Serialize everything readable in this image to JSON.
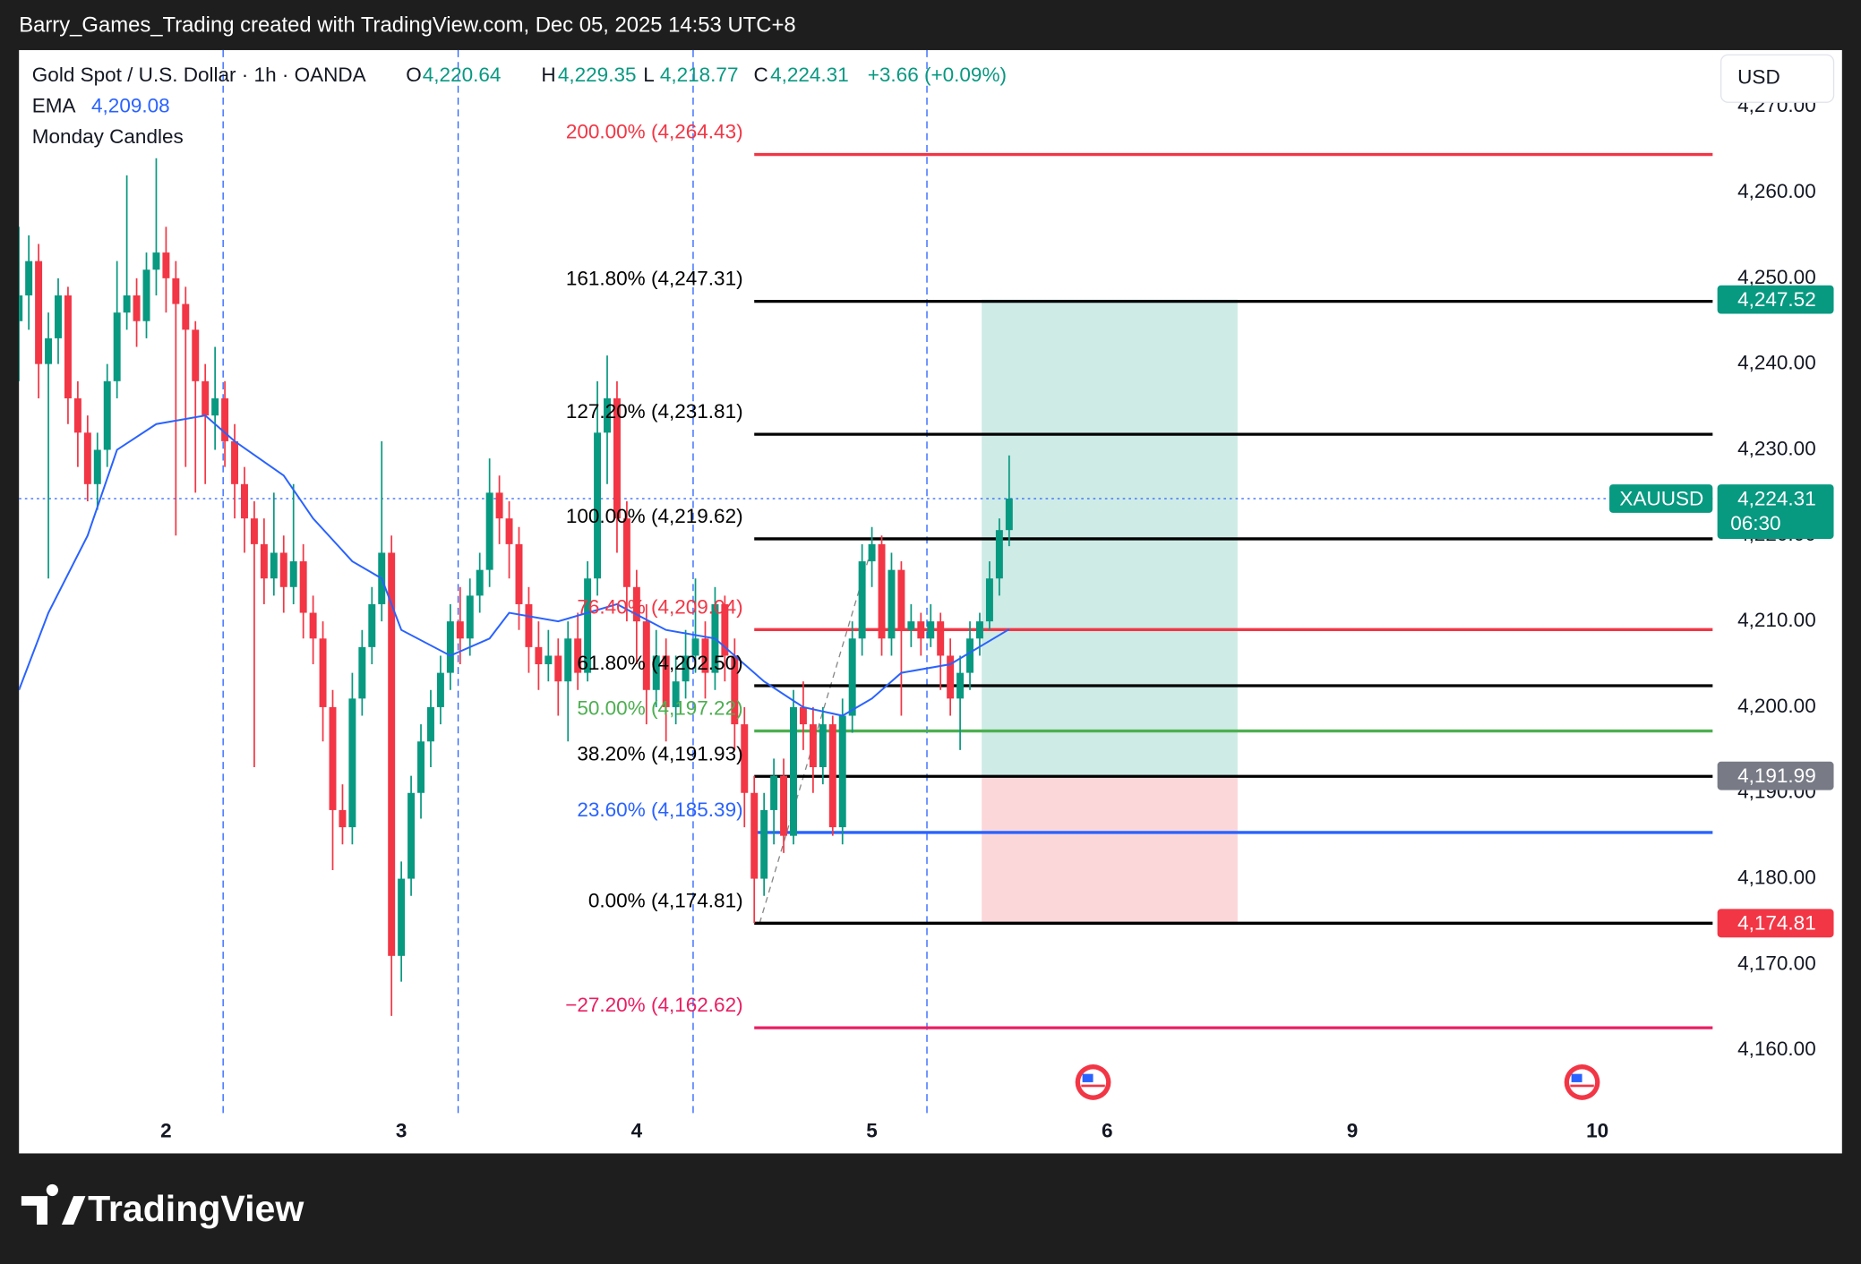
{
  "header": "Barry_Games_Trading created with TradingView.com, Dec 05, 2025 14:53 UTC+8",
  "footer_logo": "TradingView",
  "chart_data": {
    "type": "candlestick",
    "title": "Gold Spot / U.S. Dollar · 1h · OANDA",
    "legend_ohlc": [
      {
        "label": "O",
        "text": "4,220.64"
      },
      {
        "label": "H",
        "text": "4,229.35"
      },
      {
        "label": "L",
        "text": "4,218.77"
      },
      {
        "label": "C",
        "text": "4,224.31"
      }
    ],
    "change": "+3.66 (+0.09%)",
    "currency": "USD",
    "up_color": "#089981",
    "down_color": "#f23645",
    "grid": true,
    "xlim": [
      -15,
      158
    ],
    "xticks": [
      {
        "value": 0,
        "label": "2"
      },
      {
        "value": 24,
        "label": "3"
      },
      {
        "value": 48,
        "label": "4"
      },
      {
        "value": 72,
        "label": "5"
      },
      {
        "value": 96,
        "label": "6"
      },
      {
        "value": 121,
        "label": "9"
      },
      {
        "value": 146,
        "label": "10"
      }
    ],
    "ylim": [
      4152.4,
      4276.6
    ],
    "yticks": [
      {
        "value": 4160,
        "label": "4,160.00"
      },
      {
        "value": 4170,
        "label": "4,170.00"
      },
      {
        "value": 4180,
        "label": "4,180.00"
      },
      {
        "value": 4190,
        "label": "4,190.00"
      },
      {
        "value": 4200,
        "label": "4,200.00"
      },
      {
        "value": 4210,
        "label": "4,210.00"
      },
      {
        "value": 4220,
        "label": "4,220.00"
      },
      {
        "value": 4230,
        "label": "4,230.00"
      },
      {
        "value": 4240,
        "label": "4,240.00"
      },
      {
        "value": 4250,
        "label": "4,250.00"
      },
      {
        "value": 4260,
        "label": "4,260.00"
      },
      {
        "value": 4270,
        "label": "4,270.00"
      }
    ],
    "x": [
      -15,
      -14,
      -13,
      -12,
      -11,
      -10,
      -9,
      -8,
      -7,
      -6,
      -5,
      -4,
      -3,
      -2,
      -1,
      0,
      1,
      2,
      3,
      4,
      5,
      6,
      7,
      8,
      9,
      10,
      11,
      12,
      13,
      14,
      15,
      16,
      17,
      18,
      19,
      20,
      21,
      22,
      23,
      24,
      25,
      26,
      27,
      28,
      29,
      30,
      31,
      32,
      33,
      34,
      35,
      36,
      37,
      38,
      39,
      40,
      41,
      42,
      43,
      44,
      45,
      46,
      47,
      48,
      49,
      50,
      51,
      52,
      53,
      54,
      55,
      56,
      57,
      58,
      59,
      60,
      61,
      62,
      63,
      64,
      65,
      66,
      67,
      68,
      69,
      70,
      71,
      72,
      73,
      74,
      75,
      76,
      77,
      78,
      79,
      80,
      81,
      82,
      83,
      84,
      85,
      86
    ],
    "open": [
      4245,
      4248,
      4252,
      4240,
      4243,
      4248,
      4236,
      4232,
      4226,
      4230,
      4238,
      4246,
      4248,
      4245,
      4251,
      4253,
      4250,
      4247,
      4244,
      4238,
      4234,
      4236,
      4231,
      4226,
      4222,
      4219,
      4215,
      4218,
      4214,
      4217,
      4211,
      4208,
      4200,
      4188,
      4186,
      4201,
      4207,
      4212,
      4218,
      4171,
      4180,
      4190,
      4196,
      4200,
      4204,
      4210,
      4208,
      4213,
      4216,
      4225,
      4222,
      4219,
      4212,
      4207,
      4205,
      4206,
      4203,
      4208,
      4204,
      4215,
      4232,
      4236,
      4222,
      4214,
      4210,
      4202,
      4206,
      4200,
      4203,
      4206,
      4208,
      4204,
      4212,
      4206,
      4198,
      4190,
      4180,
      4188,
      4192,
      4185,
      4200,
      4198,
      4193,
      4198,
      4186,
      4199,
      4208,
      4217,
      4219,
      4208,
      4216,
      4209,
      4210,
      4208,
      4210,
      4206,
      4201,
      4204,
      4208,
      4210,
      4215,
      4220.64
    ],
    "high": [
      4256,
      4255,
      4254,
      4246,
      4250,
      4249,
      4238,
      4234,
      4232,
      4240,
      4252,
      4262,
      4250,
      4253,
      4264,
      4256,
      4252,
      4249,
      4245,
      4240,
      4242,
      4238,
      4233,
      4228,
      4224,
      4222,
      4225,
      4220,
      4226,
      4219,
      4213,
      4210,
      4202,
      4191,
      4204,
      4209,
      4214,
      4231,
      4220,
      4182,
      4192,
      4198,
      4202,
      4206,
      4212,
      4214,
      4215,
      4218,
      4229,
      4227,
      4224,
      4221,
      4214,
      4210,
      4209,
      4208,
      4210,
      4211,
      4217,
      4238,
      4241,
      4238,
      4224,
      4216,
      4212,
      4209,
      4208,
      4206,
      4209,
      4215,
      4210,
      4214,
      4213,
      4208,
      4200,
      4192,
      4190,
      4194,
      4194,
      4202,
      4203,
      4200,
      4200,
      4199,
      4201,
      4210,
      4219,
      4221,
      4220,
      4218,
      4217,
      4212,
      4211,
      4212,
      4211,
      4208,
      4206,
      4210,
      4211,
      4217,
      4222,
      4229.35
    ],
    "low": [
      4238,
      4244,
      4236,
      4215,
      4240,
      4233,
      4228,
      4224,
      4223,
      4228,
      4236,
      4244,
      4242,
      4243,
      4248,
      4246,
      4220,
      4228,
      4225,
      4226,
      4230,
      4228,
      4222,
      4218,
      4193,
      4212,
      4213,
      4211,
      4212,
      4208,
      4205,
      4196,
      4181,
      4184,
      4184,
      4199,
      4205,
      4210,
      4164,
      4168,
      4178,
      4187,
      4193,
      4198,
      4202,
      4205,
      4206,
      4211,
      4214,
      4219,
      4215,
      4209,
      4204,
      4202,
      4203,
      4199,
      4196,
      4202,
      4203,
      4213,
      4226,
      4218,
      4210,
      4205,
      4198,
      4200,
      4196,
      4198,
      4201,
      4204,
      4201,
      4202,
      4203,
      4195,
      4186,
      4174.81,
      4178,
      4184,
      4183,
      4184,
      4195,
      4190,
      4191,
      4185,
      4184,
      4197,
      4206,
      4214,
      4206,
      4206,
      4199,
      4207,
      4206,
      4207,
      4202,
      4199,
      4195,
      4202,
      4206,
      4209,
      4213,
      4218.77
    ],
    "close": [
      4248,
      4252,
      4240,
      4243,
      4248,
      4236,
      4232,
      4226,
      4230,
      4238,
      4246,
      4248,
      4245,
      4251,
      4253,
      4250,
      4247,
      4244,
      4238,
      4234,
      4236,
      4231,
      4226,
      4222,
      4219,
      4215,
      4218,
      4214,
      4217,
      4211,
      4208,
      4200,
      4188,
      4186,
      4201,
      4207,
      4212,
      4218,
      4171,
      4180,
      4190,
      4196,
      4200,
      4204,
      4210,
      4208,
      4213,
      4216,
      4225,
      4222,
      4219,
      4212,
      4207,
      4205,
      4206,
      4203,
      4208,
      4204,
      4215,
      4232,
      4236,
      4222,
      4214,
      4210,
      4202,
      4206,
      4200,
      4203,
      4206,
      4208,
      4204,
      4212,
      4206,
      4198,
      4190,
      4180,
      4188,
      4192,
      4185,
      4200,
      4198,
      4193,
      4198,
      4186,
      4199,
      4208,
      4217,
      4219,
      4208,
      4216,
      4209,
      4210,
      4208,
      4210,
      4206,
      4201,
      4204,
      4208,
      4210,
      4215,
      4220.64,
      4224.31
    ],
    "indicators": [
      {
        "name": "EMA",
        "value_label": "4,209.08",
        "color": "#2962ff",
        "x": [
          -15,
          -12,
          -8,
          -5,
          -1,
          4,
          7,
          12,
          15,
          19,
          22,
          24,
          29,
          33,
          35,
          40,
          46,
          51,
          56,
          61,
          65,
          69,
          72,
          75,
          80,
          86
        ],
        "values": [
          4202,
          4211,
          4220,
          4230,
          4233,
          4234,
          4231,
          4227,
          4222,
          4217,
          4215,
          4209,
          4206,
          4208,
          4211,
          4210,
          4212,
          4209,
          4208,
          4203,
          4200,
          4199,
          4201,
          4204,
          4205,
          4209.08
        ]
      },
      {
        "name": "Monday Candles"
      }
    ],
    "fib": {
      "x_start": 60,
      "levels": [
        {
          "label": "200.00% (4,264.43)",
          "value": 4264.43,
          "color": "#f23645"
        },
        {
          "label": "161.80% (4,247.31)",
          "value": 4247.31,
          "color": "#000000"
        },
        {
          "label": "127.20% (4,231.81)",
          "value": 4231.81,
          "color": "#000000"
        },
        {
          "label": "100.00% (4,219.62)",
          "value": 4219.62,
          "color": "#000000"
        },
        {
          "label": "76.40% (4,209.04)",
          "value": 4209.04,
          "color": "#f23645"
        },
        {
          "label": "61.80% (4,202.50)",
          "value": 4202.5,
          "color": "#000000"
        },
        {
          "label": "50.00% (4,197.22)",
          "value": 4197.22,
          "color": "#4caf50"
        },
        {
          "label": "38.20% (4,191.93)",
          "value": 4191.93,
          "color": "#000000"
        },
        {
          "label": "23.60% (4,185.39)",
          "value": 4185.39,
          "color": "#2962ff"
        },
        {
          "label": "0.00% (4,174.81)",
          "value": 4174.81,
          "color": "#000000"
        },
        {
          "label": "−27.20% (4,162.62)",
          "value": 4162.62,
          "color": "#e91e63"
        }
      ]
    },
    "position": {
      "x0": 83.2,
      "x1": 109.3,
      "target": 4247.52,
      "entry": 4191.99,
      "stop": 4174.81
    },
    "price_labels": [
      {
        "value": 4247.52,
        "label": "4,247.52",
        "color": "#089981"
      },
      {
        "value": 4191.99,
        "label": "4,191.99",
        "color": "#787b86"
      },
      {
        "value": 4174.81,
        "label": "4,174.81",
        "color": "#f23645"
      }
    ],
    "last_price": {
      "name": "XAUUSD",
      "value": 4224.31,
      "label": "4,224.31",
      "countdown": "06:30",
      "color": "#089981"
    }
  }
}
